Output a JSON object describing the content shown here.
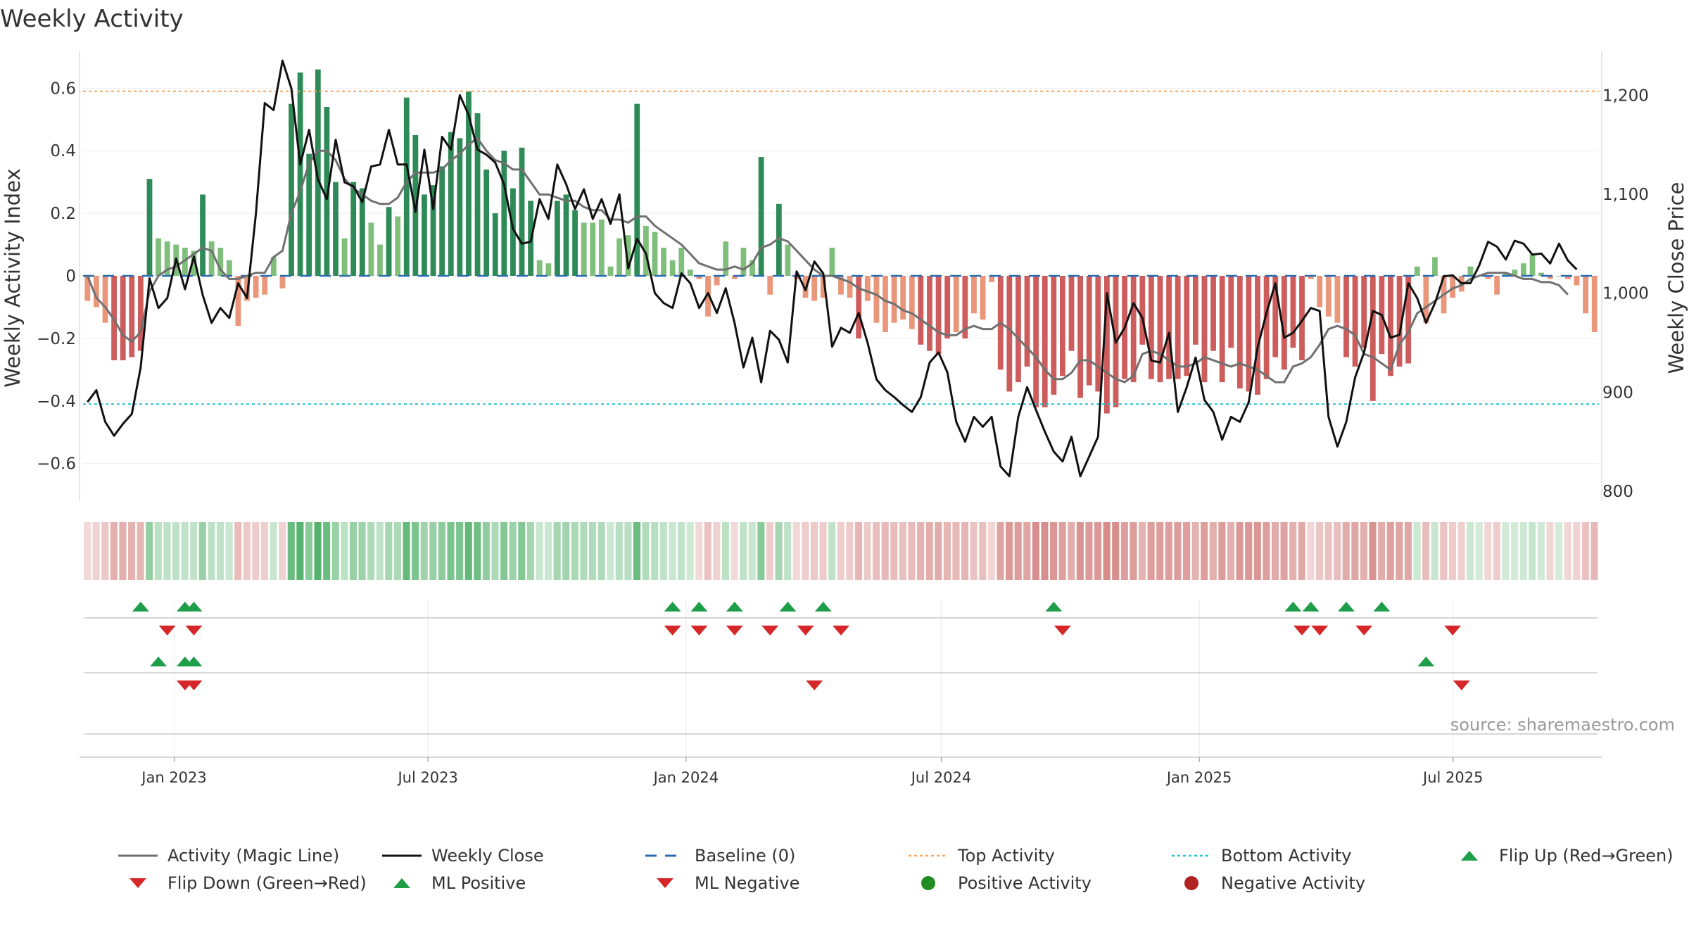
{
  "chart_data": {
    "type": "bar",
    "title": "Weekly Activity",
    "ylabel_left": "Weekly Activity Index",
    "ylabel_right": "Weekly Close Price",
    "left_ticks": [
      {
        "value": 0.6,
        "label": "0.6"
      },
      {
        "value": 0.4,
        "label": "0.4"
      },
      {
        "value": 0.2,
        "label": "0.2"
      },
      {
        "value": 0,
        "label": "0"
      },
      {
        "value": -0.2,
        "label": "−0.2"
      },
      {
        "value": -0.4,
        "label": "−0.4"
      },
      {
        "value": -0.6,
        "label": "−0.6"
      }
    ],
    "right_ticks": [
      {
        "value": 1200,
        "label": "1,200"
      },
      {
        "value": 1100,
        "label": "1,100"
      },
      {
        "value": 1000,
        "label": "1,000"
      },
      {
        "value": 900,
        "label": "900"
      },
      {
        "value": 800,
        "label": "800"
      }
    ],
    "left_range": [
      -0.72,
      0.72
    ],
    "right_range": [
      790,
      1245
    ],
    "week_start": "2022-10-28",
    "x_range": [
      "2022-10-28",
      "2025-10-13"
    ],
    "date_ticks": [
      {
        "date": "2023-01-01",
        "label": "Jan 2023"
      },
      {
        "date": "2023-07-01",
        "label": "Jul 2023"
      },
      {
        "date": "2024-01-01",
        "label": "Jan 2024"
      },
      {
        "date": "2024-07-01",
        "label": "Jul 2024"
      },
      {
        "date": "2025-01-01",
        "label": "Jan 2025"
      },
      {
        "date": "2025-07-01",
        "label": "Jul 2025"
      }
    ],
    "top_activity": 0.59,
    "bottom_activity": -0.41,
    "activity": [
      -0.08,
      -0.1,
      -0.15,
      -0.27,
      -0.27,
      -0.26,
      -0.24,
      0.31,
      0.12,
      0.11,
      0.1,
      0.09,
      0.08,
      0.26,
      0.11,
      0.09,
      0.05,
      -0.16,
      -0.08,
      -0.07,
      -0.06,
      0.06,
      -0.04,
      0.55,
      0.65,
      0.39,
      0.66,
      0.54,
      0.3,
      0.12,
      0.3,
      0.28,
      0.17,
      0.1,
      0.22,
      0.19,
      0.57,
      0.45,
      0.26,
      0.29,
      0.35,
      0.46,
      0.44,
      0.59,
      0.52,
      0.34,
      0.2,
      0.4,
      0.28,
      0.41,
      0.24,
      0.05,
      0.04,
      0.24,
      0.26,
      0.21,
      0.17,
      0.17,
      0.18,
      0.03,
      0.12,
      0.13,
      0.55,
      0.16,
      0.14,
      0.09,
      0.05,
      0.09,
      0.02,
      -0.01,
      -0.13,
      -0.03,
      0.11,
      -0.01,
      0.09,
      0.05,
      0.38,
      -0.06,
      0.23,
      0.1,
      -0.01,
      -0.07,
      -0.08,
      -0.07,
      0.09,
      -0.06,
      -0.07,
      -0.2,
      -0.08,
      -0.15,
      -0.18,
      -0.15,
      -0.14,
      -0.17,
      -0.22,
      -0.24,
      -0.25,
      -0.2,
      -0.18,
      -0.2,
      -0.12,
      -0.14,
      -0.02,
      -0.3,
      -0.37,
      -0.34,
      -0.29,
      -0.42,
      -0.42,
      -0.38,
      -0.32,
      -0.24,
      -0.39,
      -0.35,
      -0.37,
      -0.44,
      -0.42,
      -0.33,
      -0.34,
      -0.22,
      -0.33,
      -0.34,
      -0.33,
      -0.33,
      -0.32,
      -0.22,
      -0.34,
      -0.24,
      -0.34,
      -0.23,
      -0.36,
      -0.37,
      -0.38,
      -0.33,
      -0.26,
      -0.3,
      -0.23,
      -0.27,
      -0.01,
      -0.1,
      -0.13,
      -0.15,
      -0.26,
      -0.29,
      -0.23,
      -0.4,
      -0.25,
      -0.32,
      -0.29,
      -0.28,
      0.03,
      -0.15,
      0.06,
      -0.12,
      -0.07,
      -0.05,
      0.03,
      0.0,
      -0.01,
      -0.06,
      0.01,
      0.02,
      0.04,
      0.07,
      0.01,
      -0.01,
      0.0,
      -0.01,
      -0.03,
      -0.12,
      -0.18
    ],
    "magic_line": [
      0.0,
      -0.07,
      -0.1,
      -0.14,
      -0.19,
      -0.21,
      -0.18,
      -0.05,
      0.0,
      0.02,
      0.03,
      0.05,
      0.07,
      0.09,
      0.08,
      0.02,
      -0.01,
      -0.01,
      0.0,
      0.01,
      0.01,
      0.06,
      0.08,
      0.2,
      0.27,
      0.36,
      0.4,
      0.4,
      0.37,
      0.31,
      0.28,
      0.26,
      0.24,
      0.23,
      0.23,
      0.25,
      0.3,
      0.33,
      0.33,
      0.33,
      0.34,
      0.37,
      0.39,
      0.42,
      0.44,
      0.4,
      0.37,
      0.36,
      0.34,
      0.34,
      0.3,
      0.26,
      0.26,
      0.25,
      0.24,
      0.24,
      0.22,
      0.21,
      0.21,
      0.18,
      0.18,
      0.17,
      0.19,
      0.19,
      0.16,
      0.14,
      0.12,
      0.1,
      0.07,
      0.04,
      0.03,
      0.02,
      0.02,
      0.03,
      0.02,
      0.04,
      0.09,
      0.1,
      0.12,
      0.11,
      0.08,
      0.05,
      0.02,
      0.0,
      0.0,
      -0.01,
      -0.02,
      -0.04,
      -0.05,
      -0.06,
      -0.08,
      -0.09,
      -0.11,
      -0.12,
      -0.14,
      -0.16,
      -0.18,
      -0.19,
      -0.19,
      -0.17,
      -0.16,
      -0.17,
      -0.17,
      -0.15,
      -0.17,
      -0.2,
      -0.23,
      -0.26,
      -0.3,
      -0.33,
      -0.33,
      -0.31,
      -0.27,
      -0.27,
      -0.29,
      -0.31,
      -0.33,
      -0.34,
      -0.32,
      -0.25,
      -0.24,
      -0.25,
      -0.27,
      -0.29,
      -0.29,
      -0.28,
      -0.26,
      -0.27,
      -0.28,
      -0.29,
      -0.28,
      -0.29,
      -0.3,
      -0.32,
      -0.34,
      -0.34,
      -0.29,
      -0.28,
      -0.26,
      -0.22,
      -0.17,
      -0.16,
      -0.17,
      -0.19,
      -0.25,
      -0.26,
      -0.28,
      -0.3,
      -0.22,
      -0.18,
      -0.12,
      -0.1,
      -0.08,
      -0.06,
      -0.04,
      -0.03,
      -0.01,
      0.0,
      0.01,
      0.01,
      0.01,
      0.0,
      -0.01,
      -0.01,
      -0.02,
      -0.02,
      -0.03,
      -0.06
    ],
    "weekly_close": [
      890,
      902,
      870,
      856,
      868,
      878,
      925,
      1015,
      985,
      995,
      1035,
      1004,
      1037,
      998,
      970,
      985,
      975,
      1010,
      995,
      1080,
      1192,
      1185,
      1235,
      1207,
      1130,
      1165,
      1115,
      1095,
      1155,
      1112,
      1108,
      1092,
      1128,
      1130,
      1165,
      1130,
      1130,
      1082,
      1145,
      1085,
      1158,
      1145,
      1200,
      1180,
      1145,
      1140,
      1132,
      1110,
      1065,
      1050,
      1052,
      1095,
      1075,
      1130,
      1110,
      1085,
      1105,
      1075,
      1095,
      1070,
      1100,
      1025,
      1055,
      1040,
      1000,
      990,
      985,
      1020,
      1010,
      985,
      1000,
      980,
      1005,
      970,
      925,
      955,
      910,
      962,
      953,
      930,
      1022,
      1003,
      1032,
      1020,
      946,
      965,
      960,
      980,
      950,
      913,
      902,
      895,
      887,
      880,
      895,
      930,
      940,
      920,
      870,
      850,
      875,
      865,
      875,
      825,
      815,
      875,
      905,
      882,
      860,
      840,
      830,
      855,
      815,
      835,
      855,
      1000,
      950,
      965,
      990,
      975,
      932,
      930,
      960,
      880,
      905,
      935,
      892,
      880,
      852,
      875,
      870,
      890,
      945,
      980,
      1010,
      955,
      960,
      972,
      985,
      982,
      875,
      845,
      870,
      915,
      940,
      982,
      978,
      955,
      958,
      1010,
      995,
      970,
      990,
      1017,
      1018,
      1010,
      1010,
      1028,
      1052,
      1047,
      1034,
      1053,
      1050,
      1039,
      1040,
      1030,
      1050,
      1033,
      1024
    ],
    "signal_rows": [
      {
        "name": "flip",
        "up": [
          6,
          11,
          12,
          66,
          69,
          73,
          79,
          83,
          109,
          136,
          138,
          142,
          146
        ],
        "down": [
          9,
          12,
          66,
          69,
          73,
          77,
          81,
          85,
          110,
          137,
          139,
          144,
          154
        ]
      },
      {
        "name": "ml",
        "up": [
          8,
          11,
          12,
          151
        ],
        "down": [
          11,
          12,
          82,
          155
        ]
      }
    ],
    "strip_opacity": [
      0.22,
      0.25,
      0.32,
      0.45,
      0.45,
      0.44,
      0.42,
      0.55,
      0.35,
      0.34,
      0.33,
      0.32,
      0.31,
      0.52,
      0.34,
      0.32,
      0.28,
      0.38,
      0.3,
      0.29,
      0.28,
      0.28,
      0.26,
      0.75,
      0.85,
      0.6,
      0.86,
      0.75,
      0.52,
      0.34,
      0.52,
      0.5,
      0.4,
      0.32,
      0.45,
      0.42,
      0.78,
      0.66,
      0.48,
      0.52,
      0.58,
      0.68,
      0.66,
      0.8,
      0.72,
      0.56,
      0.42,
      0.62,
      0.5,
      0.62,
      0.46,
      0.28,
      0.27,
      0.46,
      0.48,
      0.43,
      0.4,
      0.4,
      0.41,
      0.26,
      0.35,
      0.36,
      0.75,
      0.39,
      0.37,
      0.32,
      0.28,
      0.32,
      0.25,
      0.22,
      0.35,
      0.25,
      0.34,
      0.22,
      0.32,
      0.28,
      0.6,
      0.28,
      0.45,
      0.33,
      0.22,
      0.29,
      0.3,
      0.29,
      0.32,
      0.28,
      0.29,
      0.42,
      0.3,
      0.37,
      0.4,
      0.37,
      0.36,
      0.39,
      0.44,
      0.46,
      0.47,
      0.42,
      0.4,
      0.42,
      0.34,
      0.36,
      0.24,
      0.52,
      0.59,
      0.56,
      0.51,
      0.64,
      0.64,
      0.6,
      0.54,
      0.46,
      0.61,
      0.57,
      0.59,
      0.66,
      0.64,
      0.55,
      0.56,
      0.44,
      0.55,
      0.56,
      0.55,
      0.55,
      0.54,
      0.44,
      0.56,
      0.46,
      0.56,
      0.45,
      0.58,
      0.59,
      0.6,
      0.55,
      0.48,
      0.52,
      0.45,
      0.49,
      0.23,
      0.32,
      0.35,
      0.37,
      0.48,
      0.51,
      0.45,
      0.62,
      0.47,
      0.54,
      0.51,
      0.5,
      0.26,
      0.37,
      0.28,
      0.34,
      0.29,
      0.27,
      0.26,
      0.22,
      0.23,
      0.28,
      0.23,
      0.24,
      0.26,
      0.29,
      0.23,
      0.23,
      0.22,
      0.23,
      0.25,
      0.34,
      0.4
    ],
    "colors": {
      "strong_green": "#2e8b57",
      "light_green": "#7fbf7b",
      "strong_red": "#cd5c5c",
      "light_red": "#e9967a",
      "strip_green": "#3aa655",
      "strip_red": "#c0504d",
      "magic_line": "#707070",
      "close_line": "#111111",
      "baseline": "#2b6cb0",
      "top_line": "#f4a460",
      "bottom_line": "#20c4cc",
      "up_marker": "#1f9e4a",
      "down_marker": "#d62728"
    },
    "legend": [
      {
        "key": "magic",
        "label": "Activity (Magic Line)"
      },
      {
        "key": "close",
        "label": "Weekly Close"
      },
      {
        "key": "baseline",
        "label": "Baseline (0)"
      },
      {
        "key": "top",
        "label": "Top Activity"
      },
      {
        "key": "bottom",
        "label": "Bottom Activity"
      },
      {
        "key": "flipup",
        "label": "Flip Up (Red→Green)"
      },
      {
        "key": "flipdown",
        "label": "Flip Down (Green→Red)"
      },
      {
        "key": "mlpos",
        "label": "ML Positive"
      },
      {
        "key": "mlneg",
        "label": "ML Negative"
      },
      {
        "key": "posact",
        "label": "Positive Activity"
      },
      {
        "key": "negact",
        "label": "Negative Activity"
      }
    ],
    "source": "source: sharemaestro.com"
  }
}
